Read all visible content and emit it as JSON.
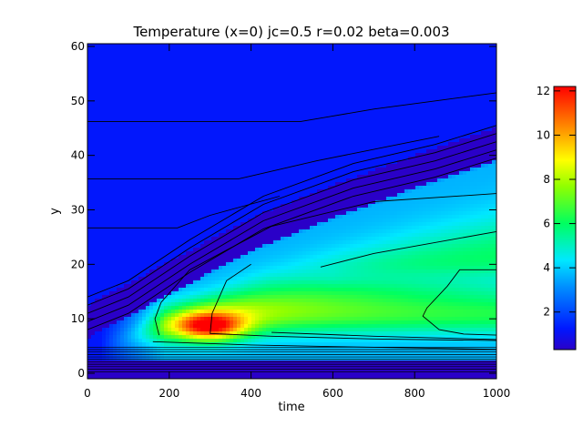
{
  "chart_data": {
    "type": "heatmap",
    "title": "Temperature (x=0) jc=0.5 r=0.02 beta=0.003",
    "xlabel": "time",
    "ylabel": "y",
    "xlim": [
      0,
      1000
    ],
    "ylim": [
      -1,
      60.5
    ],
    "x_ticks": [
      0,
      200,
      400,
      600,
      800,
      1000
    ],
    "y_ticks": [
      0,
      10,
      20,
      30,
      40,
      50,
      60
    ],
    "colorbar": {
      "range": [
        0.3,
        12.2
      ],
      "ticks": [
        2,
        4,
        6,
        8,
        10,
        12
      ],
      "colormap": "rainbow"
    },
    "features": {
      "background_value": 1.2,
      "hot_spot": {
        "x": 300,
        "y": 8.5,
        "value": 12
      },
      "band_centers": [
        {
          "x": 0,
          "y": 9
        },
        {
          "x": 200,
          "y": 17
        },
        {
          "x": 400,
          "y": 25
        },
        {
          "x": 600,
          "y": 31
        },
        {
          "x": 800,
          "y": 36.5
        },
        {
          "x": 1000,
          "y": 41.5
        }
      ]
    },
    "contour_lines": [
      [
        [
          0,
          46.2
        ],
        [
          520,
          46.2
        ],
        [
          700,
          48.5
        ],
        [
          1000,
          51.5
        ]
      ],
      [
        [
          0,
          35.7
        ],
        [
          370,
          35.7
        ],
        [
          560,
          39
        ],
        [
          860,
          43.5
        ]
      ],
      [
        [
          0,
          26.7
        ],
        [
          220,
          26.7
        ],
        [
          300,
          29
        ],
        [
          470,
          32.5
        ]
      ],
      [
        [
          0,
          14
        ],
        [
          100,
          17
        ],
        [
          250,
          24.5
        ],
        [
          430,
          32.5
        ],
        [
          650,
          38.5
        ],
        [
          850,
          42
        ],
        [
          1000,
          45.5
        ]
      ],
      [
        [
          0,
          12.5
        ],
        [
          100,
          15.5
        ],
        [
          250,
          23
        ],
        [
          430,
          31
        ],
        [
          650,
          37
        ],
        [
          850,
          40.5
        ],
        [
          1000,
          44
        ]
      ],
      [
        [
          0,
          11
        ],
        [
          100,
          14
        ],
        [
          250,
          21.5
        ],
        [
          430,
          29.5
        ],
        [
          650,
          35.5
        ],
        [
          850,
          39
        ],
        [
          1000,
          42.5
        ]
      ],
      [
        [
          0,
          9.5
        ],
        [
          100,
          12.5
        ],
        [
          250,
          20
        ],
        [
          430,
          28
        ],
        [
          650,
          34
        ],
        [
          850,
          37.5
        ],
        [
          1000,
          41
        ]
      ],
      [
        [
          0,
          8
        ],
        [
          100,
          11
        ],
        [
          250,
          18.5
        ],
        [
          430,
          26.5
        ],
        [
          650,
          32.5
        ],
        [
          850,
          36
        ],
        [
          1000,
          39.5
        ]
      ],
      [
        [
          180,
          13
        ],
        [
          250,
          19
        ],
        [
          450,
          27
        ],
        [
          700,
          31.5
        ],
        [
          1000,
          33
        ]
      ],
      [
        [
          175,
          7
        ],
        [
          165,
          10
        ],
        [
          180,
          13
        ]
      ],
      [
        [
          570,
          19.5
        ],
        [
          700,
          22
        ],
        [
          1000,
          26
        ]
      ],
      [
        [
          160,
          5.8
        ],
        [
          400,
          5.2
        ],
        [
          600,
          4.9
        ],
        [
          1000,
          4.4
        ]
      ],
      [
        [
          450,
          7.5
        ],
        [
          700,
          6.8
        ],
        [
          1000,
          6.2
        ]
      ],
      [
        [
          400,
          20
        ],
        [
          340,
          17
        ],
        [
          305,
          11
        ],
        [
          300,
          7.3
        ],
        [
          450,
          6.8
        ],
        [
          700,
          6.3
        ],
        [
          1000,
          6
        ]
      ],
      [
        [
          1000,
          19
        ],
        [
          910,
          19
        ],
        [
          880,
          16
        ],
        [
          830,
          12
        ],
        [
          820,
          10.5
        ],
        [
          860,
          8
        ],
        [
          920,
          7.2
        ],
        [
          1000,
          7
        ]
      ]
    ]
  }
}
